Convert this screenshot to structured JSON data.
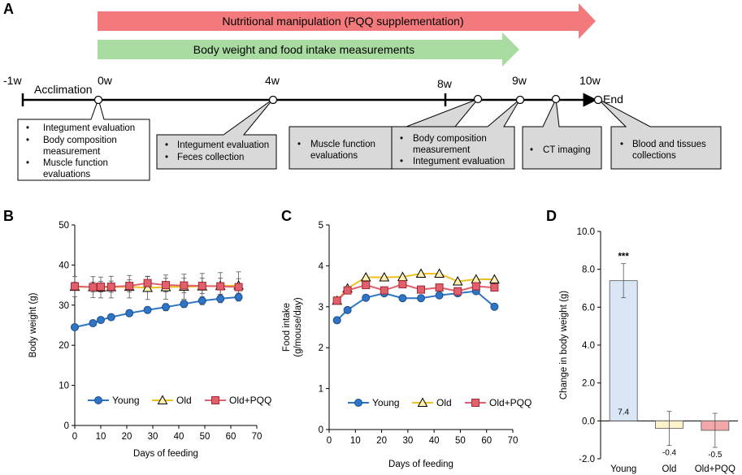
{
  "panel_a": {
    "letter": "A",
    "banner1": {
      "label": "Nutritional manipulation (PQQ supplementation)",
      "color": "#f27a7d"
    },
    "banner2": {
      "label": "Body weight and food intake measurements",
      "color": "#a9dca0"
    },
    "timeline": {
      "start": "-1w",
      "acclimation": "Acclimation",
      "w0": "0w",
      "w4": "4w",
      "w8": "8w",
      "w9": "9w",
      "w10": "10w",
      "end": "End"
    },
    "boxes": {
      "b0": [
        "Integument evaluation",
        "Body composition",
        "measurement",
        "Muscle function",
        "evaluations"
      ],
      "b4": [
        "Integument evaluation",
        "Feces collection"
      ],
      "b8": [
        "Muscle function",
        "evaluations"
      ],
      "b9": [
        "Body composition",
        "measurement",
        "Integument evaluation"
      ],
      "bct": [
        "CT imaging"
      ],
      "bend": [
        "Blood and tissues",
        "collections"
      ]
    }
  },
  "chart_data": [
    {
      "panel": "B",
      "type": "line",
      "xlabel": "Days of feeding",
      "ylabel": "Body weight (g)",
      "xlim": [
        0,
        70
      ],
      "ylim": [
        0,
        50
      ],
      "xticks": [
        "0",
        "10",
        "20",
        "30",
        "40",
        "50",
        "60",
        "70"
      ],
      "yticks": [
        "0",
        "10",
        "20",
        "30",
        "40",
        "50"
      ],
      "series": [
        {
          "name": "Young",
          "color": "#2e75c6",
          "marker": "circle",
          "x": [
            0,
            7,
            10,
            14,
            21,
            28,
            35,
            42,
            49,
            56,
            63
          ],
          "y": [
            24.5,
            25.5,
            26.3,
            27.0,
            28.0,
            28.8,
            29.5,
            30.3,
            31.1,
            31.6,
            32.0
          ],
          "err": [
            0.6,
            0.6,
            0.7,
            0.7,
            0.8,
            0.8,
            0.9,
            0.9,
            1.0,
            1.0,
            1.0
          ]
        },
        {
          "name": "Old",
          "color": "#f0c020",
          "marker": "triangle",
          "x": [
            0,
            7,
            10,
            14,
            21,
            28,
            35,
            42,
            49,
            56,
            63
          ],
          "y": [
            34.6,
            34.5,
            34.4,
            34.5,
            34.6,
            34.3,
            34.5,
            34.6,
            34.7,
            34.8,
            34.9
          ],
          "err": [
            2.5,
            2.6,
            2.6,
            2.7,
            2.8,
            2.9,
            3.0,
            3.1,
            3.2,
            3.3,
            3.4
          ]
        },
        {
          "name": "Old+PQQ",
          "color": "#e0606c",
          "marker": "square",
          "x": [
            0,
            7,
            10,
            14,
            21,
            28,
            35,
            42,
            49,
            56,
            63
          ],
          "y": [
            34.7,
            34.5,
            34.6,
            34.6,
            34.8,
            35.5,
            35.0,
            34.9,
            34.8,
            34.7,
            34.5
          ],
          "err": [
            1.0,
            1.2,
            1.3,
            1.4,
            1.5,
            1.6,
            1.7,
            1.8,
            1.9,
            2.0,
            2.1
          ]
        }
      ]
    },
    {
      "panel": "C",
      "type": "line",
      "xlabel": "Days of feeding",
      "ylabel": "Food intake",
      "ylabel2": "(g/mouse/day)",
      "xlim": [
        0,
        70
      ],
      "ylim": [
        0,
        5
      ],
      "xticks": [
        "0",
        "10",
        "20",
        "30",
        "40",
        "50",
        "60",
        "70"
      ],
      "yticks": [
        "0",
        "1",
        "2",
        "3",
        "4",
        "5"
      ],
      "series": [
        {
          "name": "Young",
          "color": "#2e75c6",
          "marker": "circle",
          "x": [
            3,
            7,
            14,
            21,
            28,
            35,
            42,
            49,
            56,
            63
          ],
          "y": [
            2.67,
            2.92,
            3.22,
            3.33,
            3.21,
            3.21,
            3.28,
            3.33,
            3.38,
            3.0
          ]
        },
        {
          "name": "Old",
          "color": "#f0c020",
          "marker": "triangle",
          "x": [
            3,
            7,
            14,
            21,
            28,
            35,
            42,
            49,
            56,
            63
          ],
          "y": [
            3.15,
            3.45,
            3.72,
            3.72,
            3.73,
            3.81,
            3.81,
            3.62,
            3.67,
            3.67
          ]
        },
        {
          "name": "Old+PQQ",
          "color": "#e0606c",
          "marker": "square",
          "x": [
            3,
            7,
            14,
            21,
            28,
            35,
            42,
            49,
            56,
            63
          ],
          "y": [
            3.15,
            3.4,
            3.53,
            3.4,
            3.55,
            3.42,
            3.47,
            3.38,
            3.5,
            3.47
          ]
        }
      ]
    },
    {
      "panel": "D",
      "type": "bar",
      "ylabel": "Change in body weight (g)",
      "ylim": [
        -2,
        10
      ],
      "yticks": [
        "-2.0",
        "0.0",
        "2.0",
        "4.0",
        "6.0",
        "8.0",
        "10.0"
      ],
      "categories": [
        "Young",
        "Old",
        "Old+PQQ"
      ],
      "values": [
        7.4,
        -0.4,
        -0.5
      ],
      "value_labels": [
        "7.4",
        "-0.4",
        "-0.5"
      ],
      "errors": [
        0.9,
        0.9,
        0.9
      ],
      "colors": [
        "#dae6f6",
        "#fdf2cc",
        "#f4a7a9"
      ],
      "annotation": "***"
    }
  ]
}
